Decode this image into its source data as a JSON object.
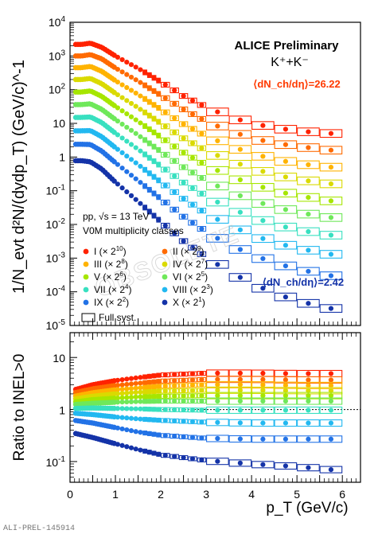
{
  "chart_data": [
    {
      "type": "scatter",
      "panel": "top",
      "ylabel": "1/N_evt d²N/(dydp_T) (GeV/c)^-1",
      "y_scale": "log",
      "ylim": [
        1e-05,
        10000
      ],
      "xlim": [
        0,
        6.4
      ],
      "yticks": [
        "10^-5",
        "10^-4",
        "10^-3",
        "10^-2",
        "10^-1",
        "1",
        "10",
        "10^2",
        "10^3",
        "10^4"
      ],
      "annotations": {
        "preliminary": "ALICE Preliminary",
        "particle": "K⁺+K⁻",
        "high_mult": "⟨dN_ch/dη⟩=26.22",
        "low_mult": "⟨dN_ch/dη⟩=2.42",
        "system": "pp, √s = 13 TeV",
        "classes": "V0M multiplicity classes",
        "syst": "Full syst.",
        "watermark": "OBSOLETE"
      },
      "legend": [
        "I (× 2^10)",
        "II (× 2^9)",
        "III (× 2^8)",
        "IV (× 2^7)",
        "V (× 2^6)",
        "VI (× 2^5)",
        "VII (× 2^4)",
        "VIII (× 2^3)",
        "IX (× 2^2)",
        "X (× 2^1)"
      ],
      "colors": [
        "#ff2200",
        "#ff6a00",
        "#ffb300",
        "#dada00",
        "#a6e600",
        "#6fe85a",
        "#38e0c0",
        "#22b8f0",
        "#2272e6",
        "#1433a8"
      ],
      "series": [
        {
          "name": "I (× 2^10)",
          "anchors": [
            [
              0.25,
              2200
            ],
            [
              0.45,
              2400
            ],
            [
              0.7,
              1800
            ],
            [
              1.0,
              1000
            ],
            [
              1.5,
              430
            ],
            [
              2.0,
              170
            ],
            [
              2.5,
              65
            ],
            [
              3.0,
              30
            ],
            [
              3.5,
              16
            ],
            [
              4.0,
              10
            ],
            [
              4.5,
              7.5
            ],
            [
              5.0,
              6
            ],
            [
              5.7,
              5
            ]
          ]
        },
        {
          "name": "II (× 2^9)",
          "anchors": [
            [
              0.25,
              1000
            ],
            [
              0.45,
              1100
            ],
            [
              0.7,
              820
            ],
            [
              1.0,
              440
            ],
            [
              1.5,
              180
            ],
            [
              2.0,
              68
            ],
            [
              2.5,
              26
            ],
            [
              3.0,
              11.5
            ],
            [
              3.5,
              6
            ],
            [
              4.0,
              3.7
            ],
            [
              4.5,
              2.6
            ],
            [
              5.0,
              2.1
            ],
            [
              5.7,
              1.6
            ]
          ]
        },
        {
          "name": "III (× 2^8)",
          "anchors": [
            [
              0.25,
              450
            ],
            [
              0.45,
              490
            ],
            [
              0.7,
              350
            ],
            [
              1.0,
              185
            ],
            [
              1.5,
              72
            ],
            [
              2.0,
              26
            ],
            [
              2.5,
              9.5
            ],
            [
              3.0,
              4.2
            ],
            [
              3.5,
              2.2
            ],
            [
              4.0,
              1.3
            ],
            [
              4.5,
              0.85
            ],
            [
              5.0,
              0.65
            ],
            [
              5.7,
              0.5
            ]
          ]
        },
        {
          "name": "IV (× 2^7)",
          "anchors": [
            [
              0.25,
              200
            ],
            [
              0.45,
              215
            ],
            [
              0.7,
              150
            ],
            [
              1.0,
              78
            ],
            [
              1.5,
              29
            ],
            [
              2.0,
              10
            ],
            [
              2.5,
              3.6
            ],
            [
              3.0,
              1.55
            ],
            [
              3.5,
              0.8
            ],
            [
              4.0,
              0.47
            ],
            [
              4.5,
              0.3
            ],
            [
              5.0,
              0.22
            ],
            [
              5.7,
              0.16
            ]
          ]
        },
        {
          "name": "V (× 2^6)",
          "anchors": [
            [
              0.25,
              85
            ],
            [
              0.45,
              92
            ],
            [
              0.7,
              63
            ],
            [
              1.0,
              32
            ],
            [
              1.5,
              11.5
            ],
            [
              2.0,
              3.9
            ],
            [
              2.5,
              1.35
            ],
            [
              3.0,
              0.57
            ],
            [
              3.5,
              0.28
            ],
            [
              4.0,
              0.16
            ],
            [
              4.5,
              0.1
            ],
            [
              5.0,
              0.072
            ],
            [
              5.7,
              0.05
            ]
          ]
        },
        {
          "name": "VI (× 2^5)",
          "anchors": [
            [
              0.25,
              36
            ],
            [
              0.45,
              38
            ],
            [
              0.7,
              26
            ],
            [
              1.0,
              13
            ],
            [
              1.5,
              4.5
            ],
            [
              2.0,
              1.45
            ],
            [
              2.5,
              0.5
            ],
            [
              3.0,
              0.2
            ],
            [
              3.5,
              0.095
            ],
            [
              4.0,
              0.053
            ],
            [
              4.5,
              0.033
            ],
            [
              5.0,
              0.023
            ],
            [
              5.7,
              0.016
            ]
          ]
        },
        {
          "name": "VII (× 2^4)",
          "anchors": [
            [
              0.25,
              15
            ],
            [
              0.45,
              15.5
            ],
            [
              0.7,
              10.5
            ],
            [
              1.0,
              5.1
            ],
            [
              1.5,
              1.7
            ],
            [
              2.0,
              0.53
            ],
            [
              2.5,
              0.175
            ],
            [
              3.0,
              0.068
            ],
            [
              3.5,
              0.031
            ],
            [
              4.0,
              0.017
            ],
            [
              4.5,
              0.01
            ],
            [
              5.0,
              0.007
            ],
            [
              5.7,
              0.0048
            ]
          ]
        },
        {
          "name": "VIII (× 2^3)",
          "anchors": [
            [
              0.25,
              6
            ],
            [
              0.45,
              6.1
            ],
            [
              0.7,
              4.0
            ],
            [
              1.0,
              1.9
            ],
            [
              1.5,
              0.6
            ],
            [
              2.0,
              0.18
            ],
            [
              2.5,
              0.058
            ],
            [
              3.0,
              0.021
            ],
            [
              3.5,
              0.0095
            ],
            [
              4.0,
              0.005
            ],
            [
              4.5,
              0.0029
            ],
            [
              5.0,
              0.002
            ],
            [
              5.7,
              0.0013
            ]
          ]
        },
        {
          "name": "IX (× 2^2)",
          "anchors": [
            [
              0.25,
              2.4
            ],
            [
              0.45,
              2.35
            ],
            [
              0.7,
              1.5
            ],
            [
              1.0,
              0.68
            ],
            [
              1.5,
              0.2
            ],
            [
              2.0,
              0.057
            ],
            [
              2.5,
              0.017
            ],
            [
              3.0,
              0.006
            ],
            [
              3.5,
              0.0025
            ],
            [
              4.0,
              0.0013
            ],
            [
              4.5,
              0.00072
            ],
            [
              5.0,
              0.00048
            ],
            [
              5.7,
              0.0003
            ]
          ]
        },
        {
          "name": "X (× 2^1)",
          "anchors": [
            [
              0.25,
              0.78
            ],
            [
              0.45,
              0.72
            ],
            [
              0.7,
              0.44
            ],
            [
              1.0,
              0.18
            ],
            [
              1.5,
              0.048
            ],
            [
              2.0,
              0.012
            ],
            [
              2.5,
              0.0032
            ],
            [
              3.0,
              0.00105
            ],
            [
              3.5,
              0.0004
            ],
            [
              4.0,
              0.00018
            ],
            [
              4.5,
              9e-05
            ],
            [
              5.0,
              5.5e-05
            ],
            [
              5.7,
              3.2e-05
            ]
          ]
        }
      ]
    },
    {
      "type": "scatter",
      "panel": "bottom",
      "xlabel": "p_T (GeV/c)",
      "ylabel": "Ratio to INEL>0",
      "y_scale": "log",
      "ylim": [
        0.04,
        30
      ],
      "xlim": [
        0,
        6.4
      ],
      "xticks": [
        "0",
        "1",
        "2",
        "3",
        "4",
        "5",
        "6"
      ],
      "yticks": [
        "10^-1",
        "1",
        "10"
      ],
      "series": [
        {
          "name": "I (× 2^10)",
          "anchors": [
            [
              0.1,
              2.4
            ],
            [
              0.5,
              3.0
            ],
            [
              1.0,
              3.6
            ],
            [
              1.5,
              4.1
            ],
            [
              2.0,
              4.6
            ],
            [
              3.0,
              5.0
            ],
            [
              4.0,
              5.0
            ],
            [
              5.0,
              4.9
            ],
            [
              5.7,
              4.9
            ]
          ]
        },
        {
          "name": "II (× 2^9)",
          "anchors": [
            [
              0.1,
              2.1
            ],
            [
              0.5,
              2.5
            ],
            [
              1.0,
              2.9
            ],
            [
              1.5,
              3.2
            ],
            [
              2.0,
              3.5
            ],
            [
              3.0,
              3.8
            ],
            [
              4.0,
              3.8
            ],
            [
              5.0,
              3.7
            ],
            [
              5.7,
              3.7
            ]
          ]
        },
        {
          "name": "III (× 2^8)",
          "anchors": [
            [
              0.1,
              1.8
            ],
            [
              0.5,
              2.1
            ],
            [
              1.0,
              2.4
            ],
            [
              1.5,
              2.6
            ],
            [
              2.0,
              2.8
            ],
            [
              3.0,
              3.0
            ],
            [
              4.0,
              3.0
            ],
            [
              5.0,
              2.9
            ],
            [
              5.7,
              2.9
            ]
          ]
        },
        {
          "name": "IV (× 2^7)",
          "anchors": [
            [
              0.1,
              1.6
            ],
            [
              0.5,
              1.8
            ],
            [
              1.0,
              2.0
            ],
            [
              1.5,
              2.15
            ],
            [
              2.0,
              2.25
            ],
            [
              3.0,
              2.35
            ],
            [
              4.0,
              2.35
            ],
            [
              5.0,
              2.3
            ],
            [
              5.7,
              2.3
            ]
          ]
        },
        {
          "name": "V (× 2^6)",
          "anchors": [
            [
              0.1,
              1.4
            ],
            [
              0.5,
              1.55
            ],
            [
              1.0,
              1.65
            ],
            [
              1.5,
              1.75
            ],
            [
              2.0,
              1.8
            ],
            [
              3.0,
              1.85
            ],
            [
              4.0,
              1.85
            ],
            [
              5.0,
              1.85
            ],
            [
              5.7,
              1.85
            ]
          ]
        },
        {
          "name": "VI (× 2^5)",
          "anchors": [
            [
              0.1,
              1.25
            ],
            [
              0.5,
              1.32
            ],
            [
              1.0,
              1.38
            ],
            [
              1.5,
              1.42
            ],
            [
              2.0,
              1.45
            ],
            [
              3.0,
              1.45
            ],
            [
              4.0,
              1.45
            ],
            [
              5.0,
              1.45
            ],
            [
              5.7,
              1.45
            ]
          ]
        },
        {
          "name": "VII (× 2^4)",
          "anchors": [
            [
              0.1,
              1.05
            ],
            [
              0.5,
              1.07
            ],
            [
              1.0,
              1.05
            ],
            [
              1.5,
              1.03
            ],
            [
              2.0,
              1.0
            ],
            [
              3.0,
              0.97
            ],
            [
              4.0,
              0.97
            ],
            [
              5.0,
              0.97
            ],
            [
              5.7,
              0.97
            ]
          ]
        },
        {
          "name": "VIII (× 2^3)",
          "anchors": [
            [
              0.1,
              0.85
            ],
            [
              0.5,
              0.8
            ],
            [
              1.0,
              0.72
            ],
            [
              1.5,
              0.66
            ],
            [
              2.0,
              0.62
            ],
            [
              3.0,
              0.57
            ],
            [
              4.0,
              0.55
            ],
            [
              5.0,
              0.55
            ],
            [
              5.7,
              0.55
            ]
          ]
        },
        {
          "name": "IX (× 2^2)",
          "anchors": [
            [
              0.1,
              0.62
            ],
            [
              0.5,
              0.55
            ],
            [
              1.0,
              0.45
            ],
            [
              1.5,
              0.37
            ],
            [
              2.0,
              0.32
            ],
            [
              3.0,
              0.28
            ],
            [
              4.0,
              0.27
            ],
            [
              5.0,
              0.27
            ],
            [
              5.7,
              0.27
            ]
          ]
        },
        {
          "name": "X (× 2^1)",
          "anchors": [
            [
              0.1,
              0.35
            ],
            [
              0.5,
              0.29
            ],
            [
              1.0,
              0.22
            ],
            [
              1.5,
              0.17
            ],
            [
              2.0,
              0.135
            ],
            [
              3.0,
              0.105
            ],
            [
              4.0,
              0.09
            ],
            [
              5.0,
              0.08
            ],
            [
              5.7,
              0.07
            ]
          ]
        }
      ]
    }
  ],
  "footer": {
    "code": "ALI-PREL-145914"
  }
}
